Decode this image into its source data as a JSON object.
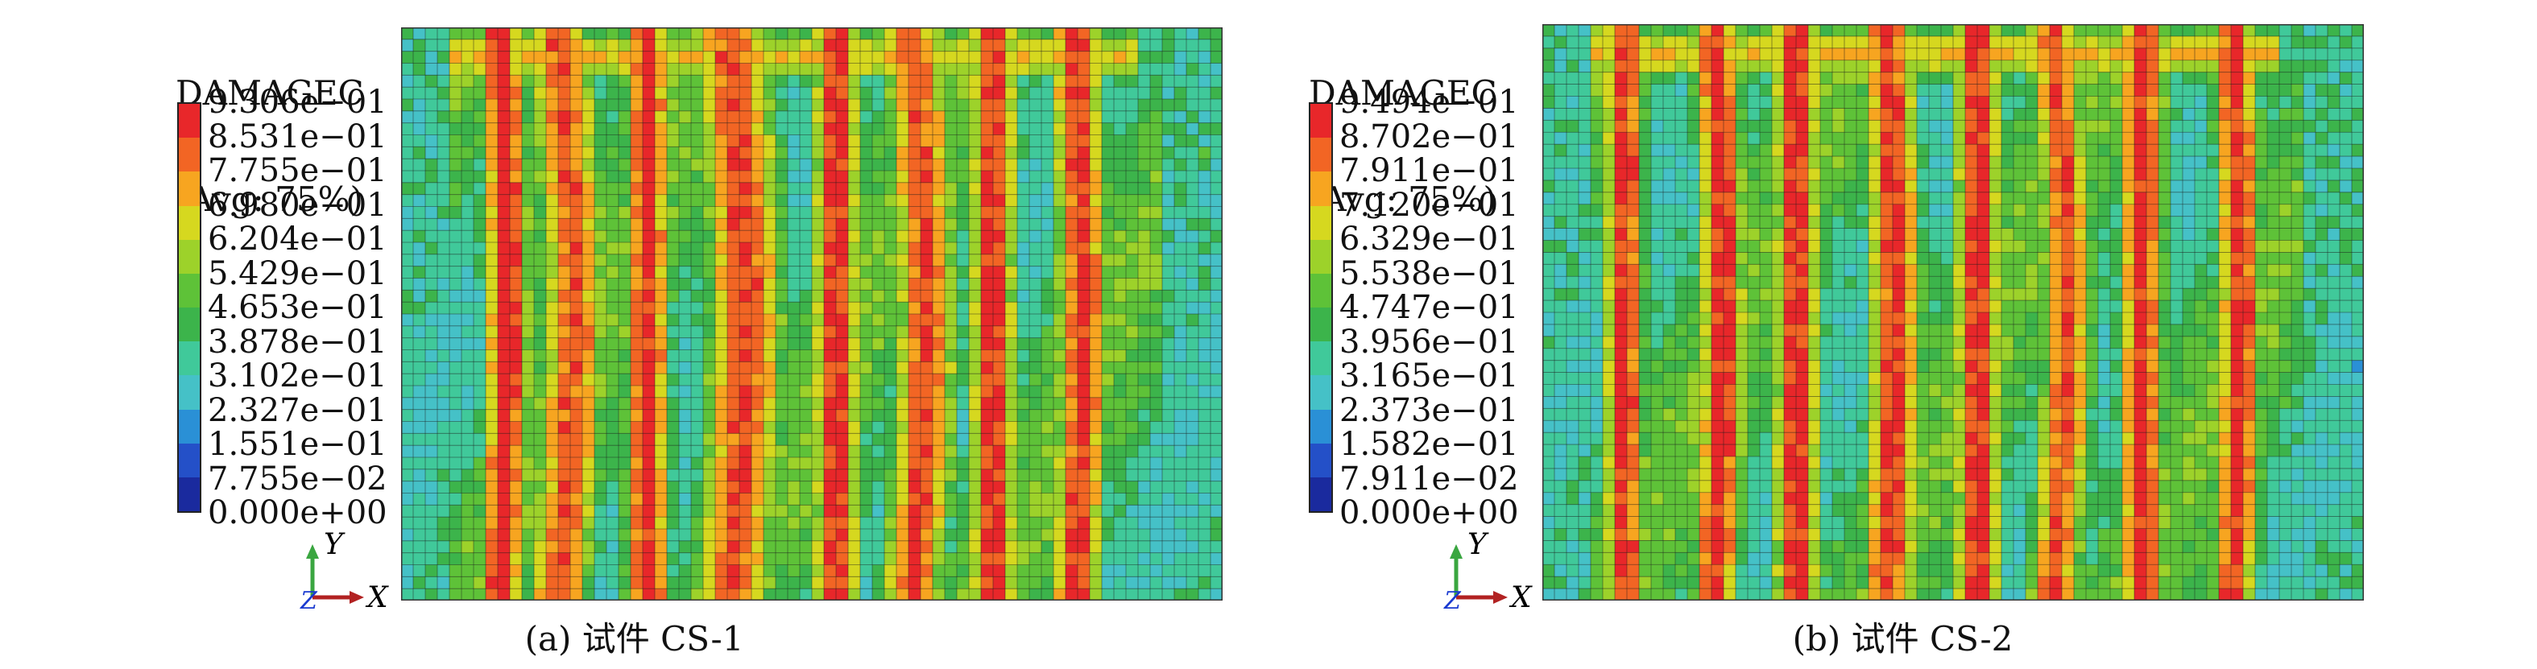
{
  "panels": [
    {
      "id": "a",
      "legend": {
        "var_name": "DAMAGEC",
        "avg_label": "(Avg: 75%)",
        "ticks": [
          "9.306e−01",
          "8.531e−01",
          "7.755e−01",
          "6.980e−01",
          "6.204e−01",
          "5.429e−01",
          "4.653e−01",
          "3.878e−01",
          "3.102e−01",
          "2.327e−01",
          "1.551e−01",
          "7.755e−02",
          "0.000e+00"
        ]
      },
      "axes": {
        "y": "Y",
        "x": "X",
        "z": "Z"
      },
      "caption": "(a) 试件 CS-1"
    },
    {
      "id": "b",
      "legend": {
        "var_name": "DAMAGEC",
        "avg_label": "(Avg: 75%)",
        "ticks": [
          "9.494e−01",
          "8.702e−01",
          "7.911e−01",
          "7.120e−01",
          "6.329e−01",
          "5.538e−01",
          "4.747e−01",
          "3.956e−01",
          "3.165e−01",
          "2.373e−01",
          "1.582e−01",
          "7.911e−02",
          "0.000e+00"
        ]
      },
      "axes": {
        "y": "Y",
        "x": "X",
        "z": "Z"
      },
      "caption": "(b) 试件 CS-2"
    }
  ],
  "colors": {
    "scale": [
      "#e8272a",
      "#f26524",
      "#f7a520",
      "#d6d81f",
      "#9dd22a",
      "#5ec238",
      "#3cb44b",
      "#40c99a",
      "#45c1c7",
      "#2a90d6",
      "#2450c8",
      "#1a2a9e"
    ],
    "mesh": "#1c1c1c",
    "axis_y": "#3aa640",
    "axis_x": "#b22222",
    "axis_z": "#1a3ad0"
  }
}
